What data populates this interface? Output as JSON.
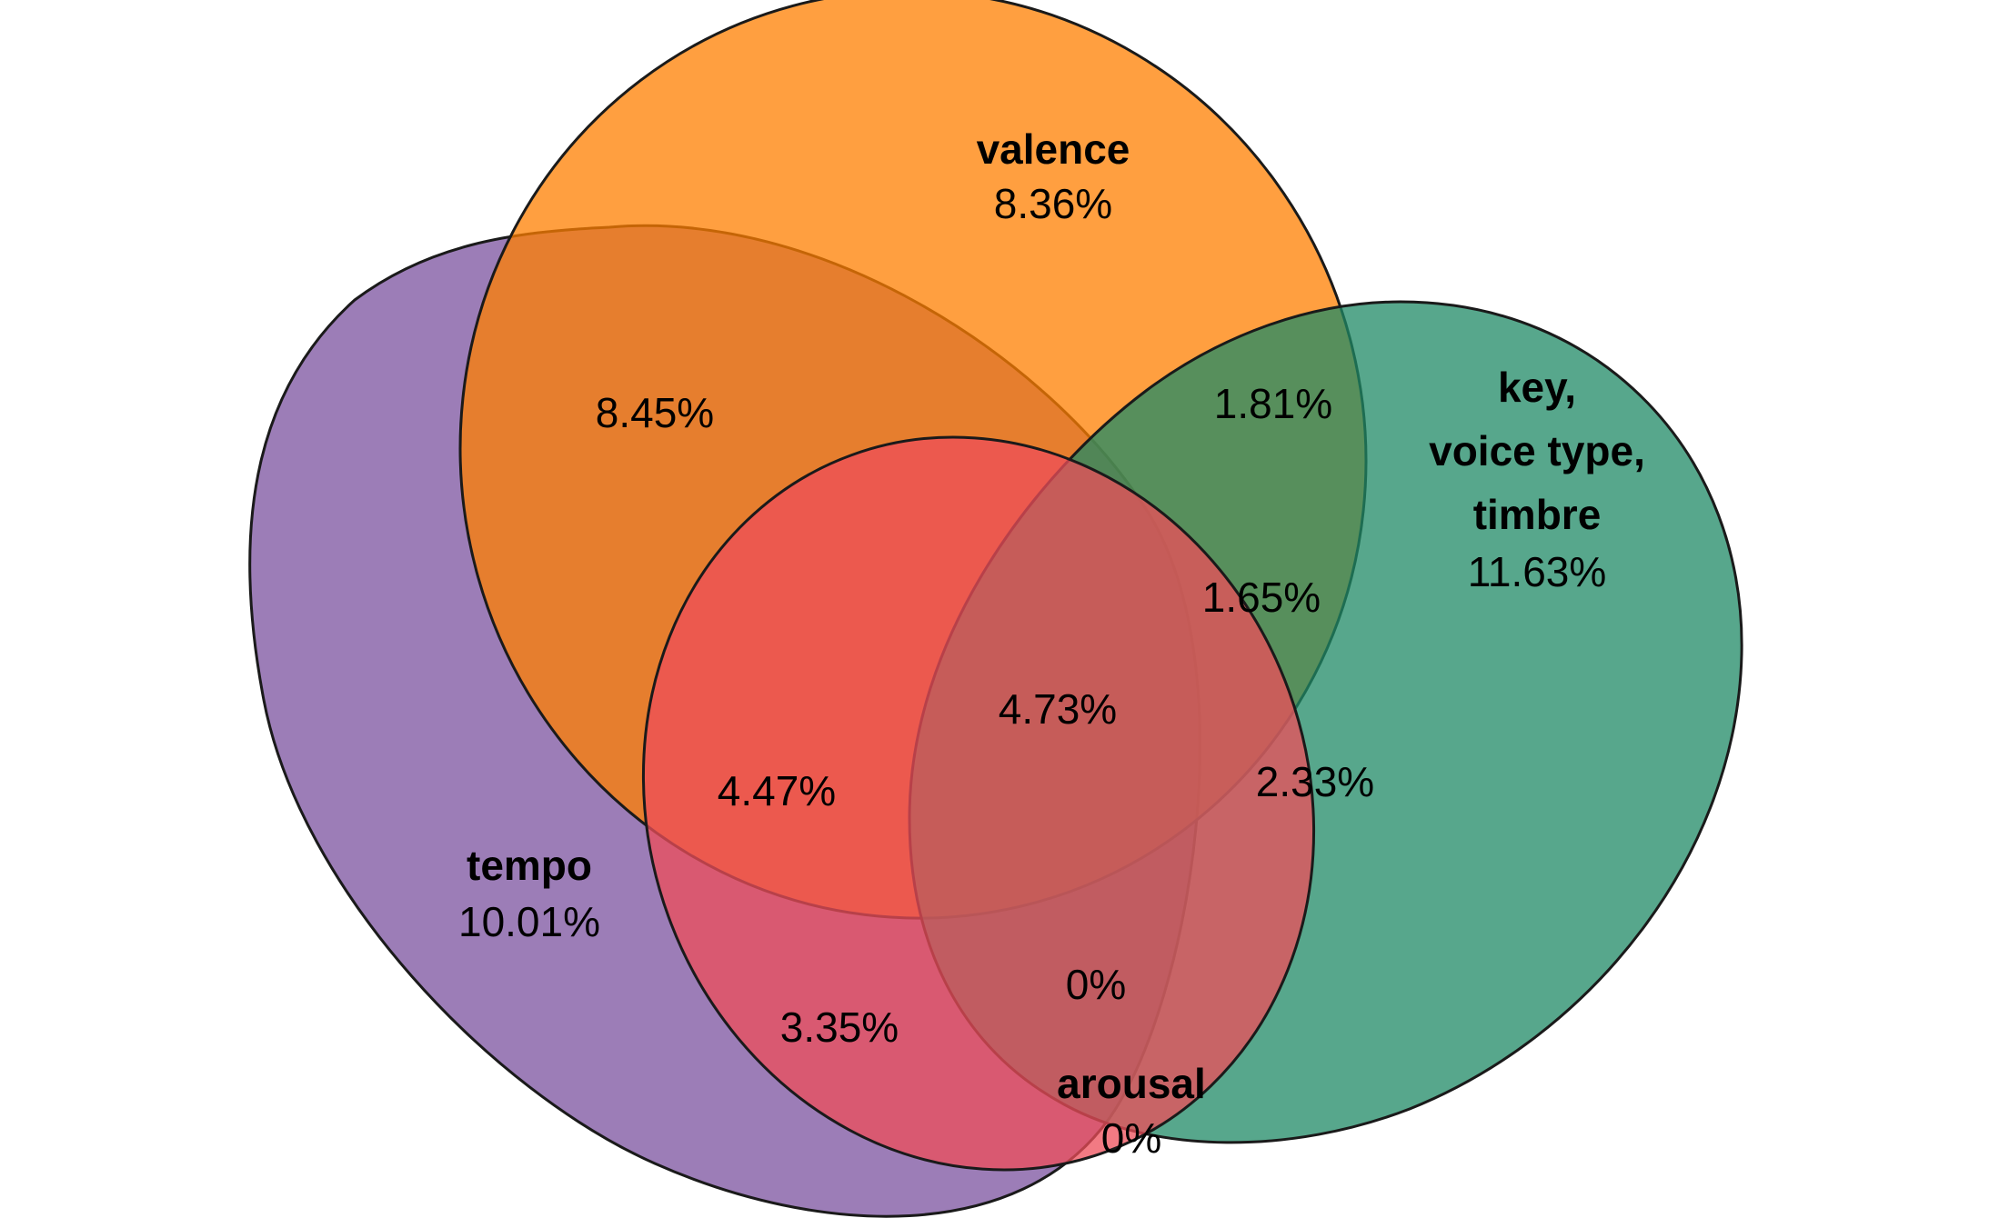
{
  "colors": {
    "tempo": "#7b519f",
    "valence": "#ff7f00",
    "key_voice_timbre": "#1f8a65",
    "arousal": "#ee4e5a",
    "outline": "#1a1a1a"
  },
  "sets": {
    "tempo": {
      "label": "tempo",
      "value": "10.01%"
    },
    "valence": {
      "label": "valence",
      "value": "8.36%"
    },
    "key_voice_timbre": {
      "label_lines": [
        "key,",
        "voice type,",
        "timbre"
      ],
      "value": "11.63%"
    },
    "arousal": {
      "label": "arousal",
      "value": "0%"
    }
  },
  "regions": {
    "tempo_valence": "8.45%",
    "valence_key": "1.81%",
    "valence_key_arousal": "1.65%",
    "all_four": "4.73%",
    "tempo_valence_arousal": "4.47%",
    "key_arousal": "2.33%",
    "tempo_arousal": "3.35%",
    "tempo_key_arousal": "0%"
  }
}
